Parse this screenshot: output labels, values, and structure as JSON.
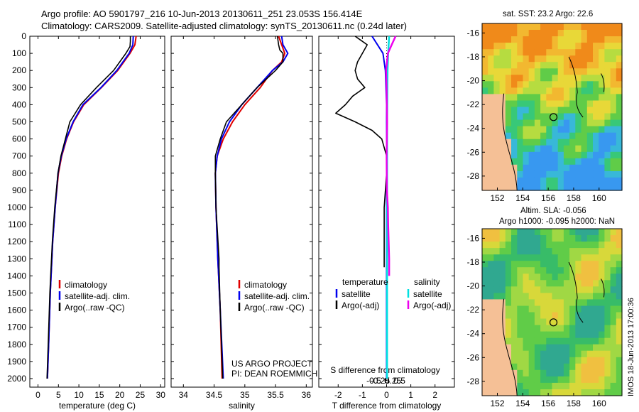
{
  "titles": {
    "line1": "Argo profile: AO 5901797_216 10-Jun-2013 20130611_251 23.053S 156.414E",
    "line2": "Climatology: CARS2009. Satellite-adjusted climatology: synTS_20130611.nc (0.24d later)"
  },
  "colors": {
    "climatology": "#e00000",
    "satellite": "#0000ee",
    "argo": "#000000",
    "sal_sat": "#00e0e0",
    "sal_argo": "#ee00ee"
  },
  "chart_data": [
    {
      "type": "line",
      "id": "temperature",
      "xlabel": "temperature (deg C)",
      "ylabel": "",
      "xlim": [
        -2,
        31
      ],
      "ylim": [
        0,
        2050
      ],
      "y_inverted": true,
      "xticks": [
        0,
        5,
        10,
        15,
        20,
        25,
        30
      ],
      "yticks": [
        0,
        100,
        200,
        300,
        400,
        500,
        600,
        700,
        800,
        900,
        1000,
        1100,
        1200,
        1300,
        1400,
        1500,
        1600,
        1700,
        1800,
        1900,
        2000
      ],
      "legend": [
        "climatology",
        "satellite-adj. clim.",
        "Argo(..raw -QC)"
      ],
      "legend_position": "bottom-right",
      "series": [
        {
          "name": "climatology",
          "depth": [
            0,
            50,
            100,
            200,
            300,
            400,
            500,
            600,
            700,
            800,
            1000,
            1200,
            1500,
            1800,
            2000
          ],
          "values": [
            24.0,
            23.7,
            22.5,
            19.5,
            15.5,
            11.2,
            8.7,
            7.0,
            5.8,
            5.0,
            4.2,
            3.6,
            3.0,
            2.6,
            2.3
          ]
        },
        {
          "name": "satellite-adj. clim.",
          "depth": [
            0,
            50,
            100,
            200,
            300,
            400,
            500,
            600,
            700,
            800,
            1000,
            1200,
            1500,
            1800,
            2000
          ],
          "values": [
            23.3,
            23.2,
            22.3,
            19.3,
            15.4,
            11.0,
            8.6,
            6.9,
            5.7,
            4.9,
            4.2,
            3.6,
            3.0,
            2.6,
            2.3
          ]
        },
        {
          "name": "Argo(..raw -QC)",
          "depth": [
            0,
            30,
            60,
            100,
            200,
            300,
            400,
            500,
            600,
            700,
            800,
            1000,
            1200,
            1500,
            1800,
            2000
          ],
          "values": [
            22.6,
            22.6,
            22.5,
            21.5,
            18.5,
            14.3,
            10.4,
            7.8,
            6.7,
            5.6,
            4.9,
            4.1,
            3.5,
            2.9,
            2.5,
            2.2
          ]
        }
      ]
    },
    {
      "type": "line",
      "id": "salinity",
      "xlabel": "salinity",
      "ylabel": "",
      "xlim": [
        33.8,
        36.1
      ],
      "ylim": [
        0,
        2050
      ],
      "y_inverted": true,
      "xticks": [
        34,
        34.5,
        35,
        35.5,
        36
      ],
      "legend": [
        "climatology",
        "satellite-adj. clim.",
        "Argo(..raw -QC)"
      ],
      "legend_position": "bottom-right",
      "annotations": [
        "US ARGO PROJECT",
        "PI: DEAN ROEMMICH"
      ],
      "series": [
        {
          "name": "climatology",
          "depth": [
            0,
            50,
            100,
            150,
            200,
            300,
            400,
            500,
            600,
            700,
            800,
            1000,
            1300,
            1600,
            2000
          ],
          "values": [
            35.55,
            35.6,
            35.65,
            35.6,
            35.45,
            35.25,
            35.0,
            34.8,
            34.65,
            34.55,
            34.52,
            34.53,
            34.56,
            34.6,
            34.63
          ]
        },
        {
          "name": "satellite-adj. clim.",
          "depth": [
            0,
            50,
            100,
            150,
            200,
            300,
            400,
            500,
            600,
            700,
            800,
            1000,
            1300,
            1600,
            2000
          ],
          "values": [
            35.6,
            35.62,
            35.7,
            35.62,
            35.45,
            35.2,
            34.95,
            34.75,
            34.62,
            34.55,
            34.52,
            34.53,
            34.56,
            34.6,
            34.65
          ]
        },
        {
          "name": "Argo(..raw -QC)",
          "depth": [
            0,
            50,
            80,
            100,
            150,
            200,
            300,
            400,
            500,
            600,
            700,
            800,
            1000,
            1300,
            1350,
            1600,
            2000
          ],
          "values": [
            35.53,
            35.55,
            35.57,
            35.62,
            35.62,
            35.5,
            35.2,
            34.95,
            34.7,
            34.6,
            34.52,
            34.52,
            34.53,
            34.58,
            34.58,
            34.6,
            34.64
          ]
        }
      ]
    },
    {
      "type": "line",
      "id": "difference",
      "xlabel": "T difference from climatology",
      "x2label": "S difference from climatology",
      "xlim": [
        -2.8,
        2.8
      ],
      "ylim": [
        0,
        2050
      ],
      "y_inverted": true,
      "xticks": [
        -2,
        -1,
        0,
        1,
        2
      ],
      "x2ticks": [
        -0.5,
        -0.25,
        0,
        0.25,
        0.5
      ],
      "legend_titles": [
        "temperature",
        "salinity"
      ],
      "legend": [
        "satellite",
        "Argo(-adj)",
        "satellite",
        "Argo(-adj)"
      ],
      "legend_position": "bottom",
      "series": [
        {
          "name": "satellite",
          "depth": [
            0,
            100,
            200,
            400,
            600,
            800,
            1000,
            1400,
            1800,
            2000
          ],
          "values": [
            -0.6,
            -0.15,
            -0.05,
            0.0,
            0.0,
            0.0,
            0.0,
            0.0,
            0.0,
            0.0
          ]
        },
        {
          "name": "Argo(-adj)",
          "depth": [
            0,
            50,
            100,
            150,
            200,
            250,
            300,
            350,
            400,
            450,
            500,
            550,
            600,
            650,
            700,
            800,
            1000,
            1300,
            1350
          ],
          "values": [
            -1.3,
            -0.8,
            -1.0,
            -1.2,
            -1.3,
            -1.2,
            -0.9,
            -1.4,
            -1.7,
            -2.1,
            -1.3,
            -0.6,
            -0.2,
            -0.1,
            0.0,
            0.0,
            -0.1,
            -0.1,
            -0.1
          ]
        },
        {
          "name": "satellite (salinity)",
          "depth": [
            0,
            100,
            200,
            300,
            500,
            800,
            1200,
            2000
          ],
          "values": [
            0.1,
            0.06,
            0.04,
            0.03,
            0.02,
            0.02,
            0.02,
            0.02
          ]
        },
        {
          "name": "Argo(-adj) (salinity)",
          "depth": [
            0,
            50,
            100,
            200,
            300,
            500,
            700,
            900,
            1000,
            1100,
            1200,
            1300,
            1400
          ],
          "values": [
            0.35,
            0.2,
            0.05,
            -0.02,
            0.0,
            0.02,
            0.0,
            0.01,
            0.05,
            0.06,
            0.08,
            0.1,
            0.1
          ]
        }
      ]
    },
    {
      "type": "heatmap",
      "id": "sst-map",
      "title": "sat. SST: 23.2  Argo: 22.6",
      "xticks": [
        152,
        154,
        156,
        158,
        160
      ],
      "yticks": [
        -16,
        -18,
        -20,
        -22,
        -24,
        -26,
        -28
      ],
      "xlim": [
        150.8,
        161.8
      ],
      "ylim": [
        -29.2,
        -15.2
      ],
      "argo_position": [
        156.414,
        -23.053
      ]
    },
    {
      "type": "heatmap",
      "id": "sla-map",
      "title": "Altim. SLA: -0.056",
      "subtitle": "Argo h1000: -0.095 h2000: NaN",
      "xticks": [
        152,
        154,
        156,
        158,
        160
      ],
      "yticks": [
        -16,
        -18,
        -20,
        -22,
        -24,
        -26,
        -28
      ],
      "xlim": [
        150.8,
        161.8
      ],
      "ylim": [
        -29.2,
        -15.2
      ],
      "argo_position": [
        156.414,
        -23.053
      ]
    }
  ],
  "stamp": "IMOS 18-Jun-2013 17:00:36"
}
